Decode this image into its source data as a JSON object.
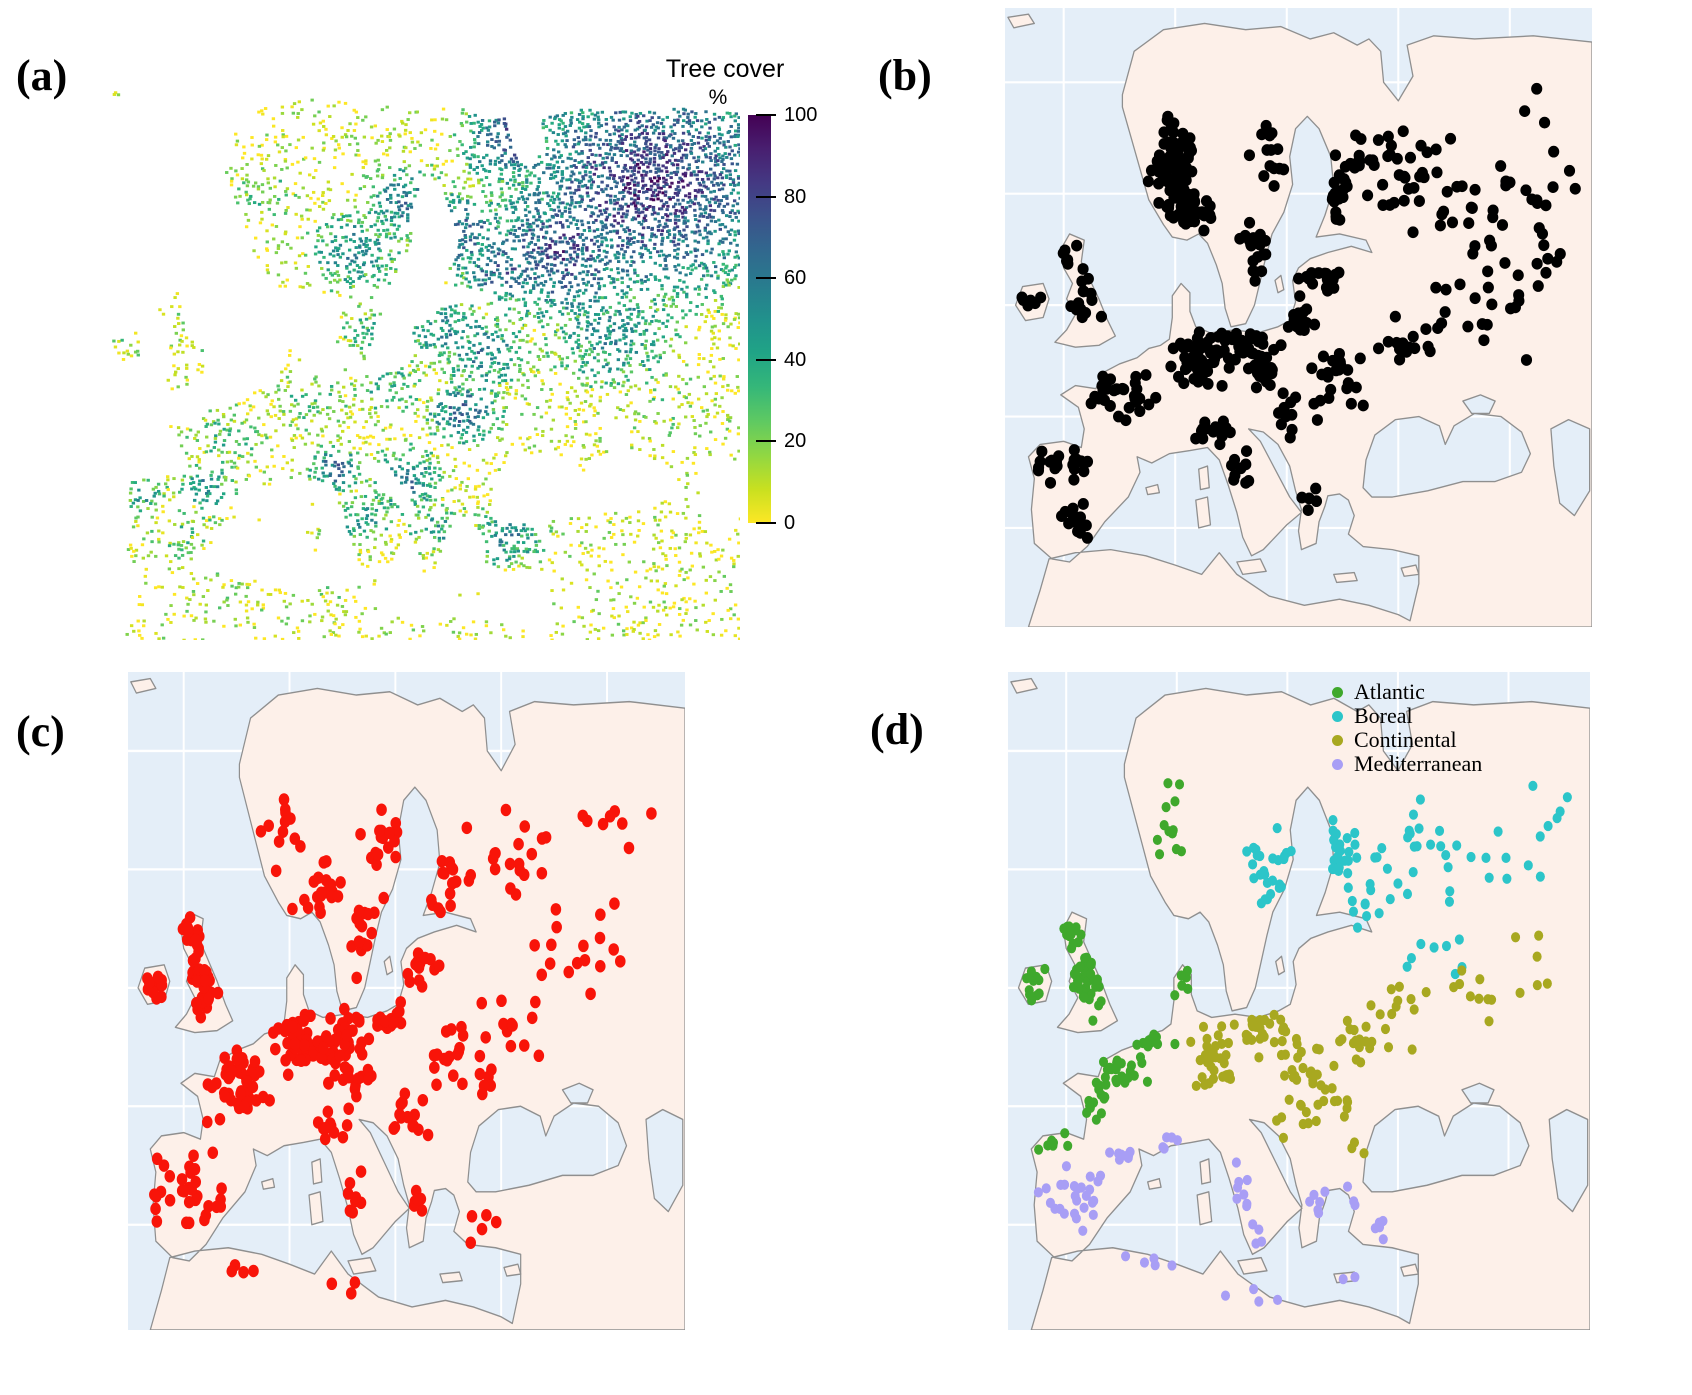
{
  "figure": {
    "background": "#ffffff",
    "panels": {
      "a": {
        "label": "(a)",
        "legend": {
          "title": "Tree cover",
          "unit": "%",
          "tick_labels": [
            "100",
            "80",
            "60",
            "40",
            "20",
            "0"
          ],
          "min": 0,
          "max": 100
        }
      },
      "b": {
        "label": "(b)"
      },
      "c": {
        "label": "(c)"
      },
      "d": {
        "label": "(d)",
        "legend": {
          "items": [
            {
              "label": "Atlantic",
              "color": "#3fa82c"
            },
            {
              "label": "Boreal",
              "color": "#2cc5c9"
            },
            {
              "label": "Continental",
              "color": "#a8a820"
            },
            {
              "label": "Mediterranean",
              "color": "#a89ef5"
            }
          ]
        }
      }
    }
  },
  "map_style": {
    "ocean": "#e4eef8",
    "land": "#fdf0e9",
    "coast": "#8f8f8f",
    "graticule": "#ffffff",
    "raster_background": "#ffffff"
  },
  "chart_data": [
    {
      "type": "heatmap",
      "panel": "a",
      "title": "Tree cover",
      "unit": "%",
      "scale_min": 0,
      "scale_max": 100,
      "colormap": "viridis (0 = yellow, 100 = dark purple)",
      "viridis_stops": [
        "#fde725",
        "#c8e020",
        "#90d743",
        "#5ec962",
        "#35b779",
        "#20a486",
        "#21918c",
        "#287c8e",
        "#31688e",
        "#3b528b",
        "#443983",
        "#481f70",
        "#440154"
      ],
      "regions": [
        [
          "ne-russia",
          86,
          18,
          26,
          88
        ],
        [
          "n-russia",
          72,
          30,
          16,
          80
        ],
        [
          "kola",
          64,
          10,
          10,
          75
        ],
        [
          "finland",
          57,
          27,
          10,
          68
        ],
        [
          "karelia",
          63,
          33,
          9,
          72
        ],
        [
          "sweden-north",
          48,
          22,
          9,
          60
        ],
        [
          "norway-coast",
          26,
          20,
          6,
          30
        ],
        [
          "scandes",
          40,
          30,
          9,
          55
        ],
        [
          "sweden-south",
          43,
          44,
          6,
          40
        ],
        [
          "baltics",
          54,
          44,
          8,
          55
        ],
        [
          "belarus",
          60,
          48,
          8,
          60
        ],
        [
          "central-russia",
          80,
          45,
          12,
          55
        ],
        [
          "poland",
          45,
          54,
          7,
          40
        ],
        [
          "germany",
          34,
          57,
          7,
          35
        ],
        [
          "lowlands",
          27,
          52,
          5,
          20
        ],
        [
          "britain",
          13,
          46,
          8,
          20
        ],
        [
          "ireland",
          4.5,
          48,
          4,
          22
        ],
        [
          "france",
          20,
          63,
          8,
          32
        ],
        [
          "alps",
          37,
          69,
          5,
          72
        ],
        [
          "pyrenees",
          17,
          72,
          5,
          55
        ],
        [
          "iberia-northwest",
          7,
          74,
          5,
          45
        ],
        [
          "iberia",
          13,
          81,
          8,
          28
        ],
        [
          "italy",
          41,
          78,
          6,
          50
        ],
        [
          "dinaric-alps",
          48,
          71,
          7,
          65
        ],
        [
          "carpathians",
          57,
          59,
          7,
          70
        ],
        [
          "balkans",
          53,
          80,
          6,
          45
        ],
        [
          "greece",
          56,
          85,
          4,
          30
        ],
        [
          "ukraine-steppe",
          70,
          56,
          12,
          12
        ],
        [
          "south-russia",
          88,
          58,
          10,
          18
        ],
        [
          "black-sea-coast",
          64,
          81,
          7,
          55
        ],
        [
          "anatolia",
          66,
          86,
          8,
          15
        ],
        [
          "north-africa",
          22,
          90,
          10,
          14
        ],
        [
          "tunisia",
          38,
          90,
          5,
          20
        ],
        [
          "iceland",
          2,
          2,
          4,
          25
        ]
      ]
    },
    {
      "type": "scatter",
      "panel": "b",
      "series": [
        {
          "name": "sites",
          "color": "#000000",
          "clusters": [
            [
              29,
              26,
              3.5,
              6,
              90
            ],
            [
              31,
              33,
              3,
              2.5,
              40
            ],
            [
              43,
              38,
              3,
              5,
              22
            ],
            [
              46,
              24,
              3,
              4,
              14
            ],
            [
              56,
              30,
              2.5,
              4,
              22
            ],
            [
              60,
              25,
              3,
              4,
              12
            ],
            [
              68,
              25,
              6,
              7,
              30
            ],
            [
              80,
              35,
              8,
              7,
              22
            ],
            [
              90,
              25,
              6,
              8,
              14
            ],
            [
              54,
              44,
              3,
              3,
              18
            ],
            [
              13,
              47,
              3,
              4,
              14
            ],
            [
              11,
              40,
              1.5,
              2,
              7
            ],
            [
              4.5,
              47.5,
              1.5,
              1.5,
              6
            ],
            [
              10,
              74,
              5,
              2,
              20
            ],
            [
              12,
              82,
              5,
              3,
              12
            ],
            [
              20,
              62,
              5,
              4,
              30
            ],
            [
              33,
              57,
              4,
              4,
              48
            ],
            [
              42,
              55,
              4,
              3,
              38
            ],
            [
              36,
              68.5,
              3,
              1.5,
              16
            ],
            [
              44,
              59,
              3,
              2,
              14
            ],
            [
              57,
              60,
              4,
              3,
              20
            ],
            [
              50,
              66,
              4,
              4,
              14
            ],
            [
              40,
              76,
              2,
              4,
              9
            ],
            [
              53,
              80,
              2,
              3,
              5
            ],
            [
              68,
              54,
              6,
              4,
              14
            ],
            [
              80,
              48,
              8,
              6,
              18
            ],
            [
              92,
              40,
              5,
              8,
              10
            ],
            [
              50,
              50,
              3,
              3,
              16
            ]
          ]
        }
      ]
    },
    {
      "type": "scatter",
      "panel": "c",
      "series": [
        {
          "name": "sites",
          "color": "#f81409",
          "clusters": [
            [
              13,
              46,
              3,
              5,
              42
            ],
            [
              10,
              40,
              2,
              2.5,
              12
            ],
            [
              4.5,
              47.5,
              1.8,
              2,
              14
            ],
            [
              19,
              62,
              5,
              5,
              48
            ],
            [
              30,
              56,
              4,
              4,
              40
            ],
            [
              38,
              56,
              4,
              4,
              30
            ],
            [
              11,
              78,
              5,
              5,
              26
            ],
            [
              5,
              80,
              1.5,
              4,
              6
            ],
            [
              33,
              34,
              4,
              4,
              20
            ],
            [
              43,
              40,
              3,
              5,
              16
            ],
            [
              27,
              25,
              3,
              5,
              12
            ],
            [
              47,
              26,
              4,
              5,
              16
            ],
            [
              57,
              32,
              3,
              4,
              14
            ],
            [
              53,
              44,
              3,
              3,
              14
            ],
            [
              45,
              52,
              4,
              3,
              22
            ],
            [
              40,
              62,
              4,
              3,
              16
            ],
            [
              37,
              69,
              3,
              2,
              10
            ],
            [
              41,
              78,
              2,
              4,
              8
            ],
            [
              50,
              68,
              4,
              4,
              14
            ],
            [
              53,
              81,
              2,
              3,
              6
            ],
            [
              59,
              59,
              5,
              4,
              20
            ],
            [
              70,
              52,
              6,
              5,
              14
            ],
            [
              68,
              28,
              7,
              6,
              20
            ],
            [
              82,
              42,
              8,
              7,
              16
            ],
            [
              88,
              20,
              6,
              6,
              8
            ],
            [
              63,
              84,
              3,
              2,
              5
            ],
            [
              20,
              90,
              6,
              1.5,
              4
            ],
            [
              40,
              93,
              4,
              1.5,
              3
            ],
            [
              64,
              63,
              2,
              2,
              3
            ]
          ]
        }
      ]
    },
    {
      "type": "scatter",
      "panel": "d",
      "series": [
        {
          "name": "Atlantic",
          "color": "#3fa82c",
          "clusters": [
            [
              13,
              46,
              3,
              5,
              40
            ],
            [
              4.5,
              47.5,
              1.8,
              2,
              14
            ],
            [
              10,
              40,
              2,
              2.5,
              10
            ],
            [
              18,
              60,
              4,
              4,
              30
            ],
            [
              24,
              55,
              3,
              2,
              12
            ],
            [
              15,
              66,
              3,
              2,
              8
            ],
            [
              7,
              71.5,
              3,
              1.5,
              7
            ],
            [
              27,
              22,
              2.5,
              5,
              12
            ],
            [
              30,
              47,
              2,
              2,
              6
            ]
          ]
        },
        {
          "name": "Boreal",
          "color": "#2cc5c9",
          "clusters": [
            [
              45,
              30,
              4,
              5,
              26
            ],
            [
              55,
              28,
              4,
              5,
              24
            ],
            [
              62,
              33,
              4,
              4,
              14
            ],
            [
              70,
              26,
              6,
              5,
              16
            ],
            [
              82,
              32,
              7,
              6,
              12
            ],
            [
              92,
              22,
              4,
              5,
              6
            ],
            [
              75,
              42,
              6,
              4,
              8
            ]
          ]
        },
        {
          "name": "Continental",
          "color": "#a8a820",
          "clusters": [
            [
              36,
              58,
              4,
              4,
              34
            ],
            [
              44,
              55,
              4,
              3,
              26
            ],
            [
              52,
              60,
              4,
              4,
              20
            ],
            [
              60,
              56,
              5,
              4,
              16
            ],
            [
              50,
              68,
              3,
              3,
              10
            ],
            [
              68,
              52,
              6,
              5,
              12
            ],
            [
              80,
              50,
              7,
              5,
              10
            ],
            [
              90,
              45,
              4,
              6,
              6
            ],
            [
              57,
              66,
              3,
              2,
              8
            ],
            [
              60,
              72,
              2,
              2,
              3
            ]
          ]
        },
        {
          "name": "Mediterranean",
          "color": "#a89ef5",
          "clusters": [
            [
              11,
              80,
              5,
              4,
              26
            ],
            [
              20,
              73,
              3,
              2,
              8
            ],
            [
              28,
              71.5,
              3,
              1.5,
              5
            ],
            [
              40,
              79,
              2,
              4,
              8
            ],
            [
              45,
              86,
              3,
              2,
              4
            ],
            [
              53,
              81,
              2,
              3,
              6
            ],
            [
              63,
              85,
              3,
              2,
              5
            ],
            [
              59.5,
              81,
              2,
              2,
              3
            ],
            [
              25,
              90,
              6,
              1.5,
              5
            ],
            [
              45,
              94,
              6,
              1.5,
              4
            ],
            [
              58,
              92,
              2,
              0.6,
              2
            ]
          ]
        }
      ]
    }
  ],
  "rng_seed": 20240612
}
